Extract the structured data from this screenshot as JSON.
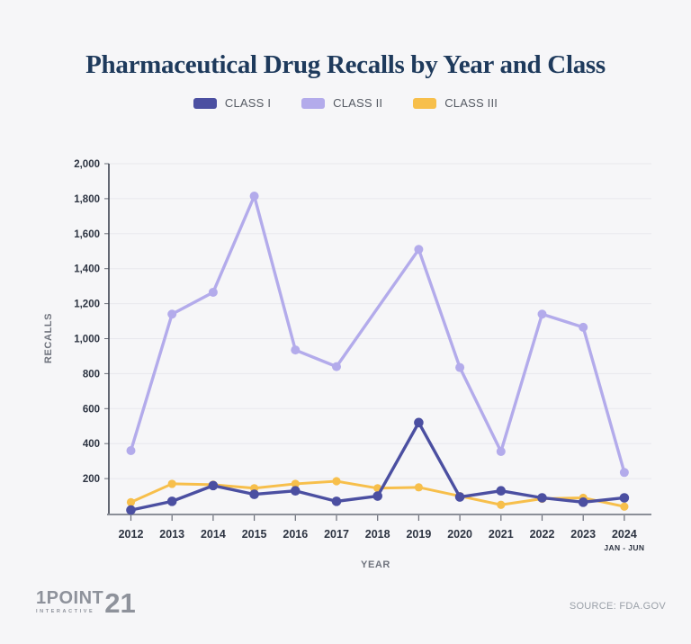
{
  "title": "Pharmaceutical Drug Recalls by Year and Class",
  "footer": {
    "logo_main": "1POINT",
    "logo_number": "21",
    "logo_sub": "INTERACTIVE",
    "source": "SOURCE: FDA.GOV"
  },
  "colors": {
    "background": "#f6f6f8",
    "title": "#1e3a5c",
    "class_i": "#4b4fa1",
    "class_ii": "#b3abeb",
    "class_iii": "#f7bf4b",
    "gridline": "#e8e8ed",
    "y_axis_line": "#3d4350",
    "x_axis_line": "#8b8f98",
    "tick_text": "#2d3442",
    "axis_label": "#70747e"
  },
  "chart_data": {
    "type": "line",
    "title": "Pharmaceutical Drug Recalls by Year and Class",
    "x": [
      "2012",
      "2013",
      "2014",
      "2015",
      "2016",
      "2017",
      "2018",
      "2019",
      "2020",
      "2021",
      "2022",
      "2023",
      "2024"
    ],
    "x_note": {
      "year": "2024",
      "text": "JAN - JUN"
    },
    "xlabel": "YEAR",
    "ylabel": "RECALLS",
    "ylim": [
      0,
      2000
    ],
    "ytick_step": 200,
    "grid": "horizontal",
    "legend_position": "top",
    "series": [
      {
        "name": "CLASS I",
        "color": "#4b4fa1",
        "values": [
          20,
          70,
          160,
          110,
          130,
          70,
          100,
          520,
          95,
          130,
          90,
          65,
          90
        ]
      },
      {
        "name": "CLASS II",
        "color": "#b3abeb",
        "values": [
          360,
          1140,
          1265,
          1815,
          935,
          840,
          null,
          1510,
          835,
          355,
          1140,
          1065,
          235
        ]
      },
      {
        "name": "CLASS III",
        "color": "#f7bf4b",
        "values": [
          65,
          170,
          165,
          145,
          170,
          185,
          145,
          150,
          100,
          50,
          85,
          90,
          40
        ]
      }
    ]
  }
}
